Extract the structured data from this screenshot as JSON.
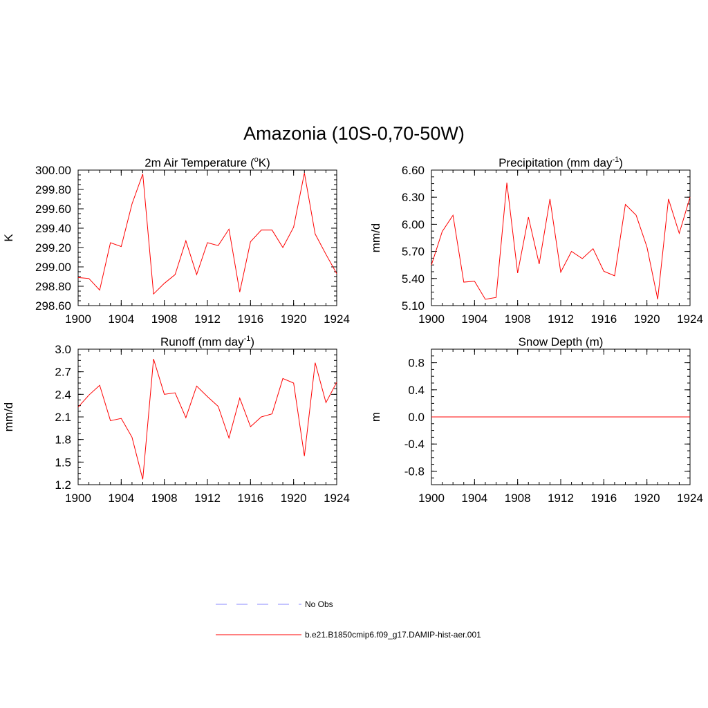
{
  "figure": {
    "title": "Amazonia (10S-0,70-50W)"
  },
  "colors": {
    "model_line": "#ff0000",
    "obs_line": "#a0a0ff",
    "axis": "#000000"
  },
  "chart_data": [
    {
      "type": "line",
      "title": "2m Air Temperature (°K)",
      "title_main": "2m Air Temperature (",
      "title_sup": "o",
      "title_end": "K)",
      "xlabel": "",
      "ylabel": "K",
      "xlim": [
        1900,
        1924
      ],
      "ylim": [
        298.6,
        300.0
      ],
      "xticks": [
        1900,
        1904,
        1908,
        1912,
        1916,
        1920,
        1924
      ],
      "yticks": [
        "298.60",
        "298.80",
        "299.00",
        "299.20",
        "299.40",
        "299.60",
        "299.80",
        "300.00"
      ],
      "grid": false,
      "series": [
        {
          "name": "b.e21.B1850cmip6.f09_g17.DAMIP-hist-aer.001",
          "x": [
            1900,
            1901,
            1902,
            1903,
            1904,
            1905,
            1906,
            1907,
            1908,
            1909,
            1910,
            1911,
            1912,
            1913,
            1914,
            1915,
            1916,
            1917,
            1918,
            1919,
            1920,
            1921,
            1922,
            1923,
            1924
          ],
          "values": [
            298.89,
            298.88,
            298.76,
            299.25,
            299.21,
            299.65,
            299.96,
            298.72,
            298.83,
            298.92,
            299.27,
            298.92,
            299.25,
            299.22,
            299.39,
            298.74,
            299.26,
            299.38,
            299.38,
            299.2,
            299.41,
            299.97,
            299.34,
            299.13,
            298.93
          ]
        }
      ]
    },
    {
      "type": "line",
      "title": "Precipitation (mm day-1)",
      "title_main": "Precipitation (mm day",
      "title_sup": "-1",
      "title_end": ")",
      "xlabel": "",
      "ylabel": "mm/d",
      "xlim": [
        1900,
        1924
      ],
      "ylim": [
        5.1,
        6.6
      ],
      "xticks": [
        1900,
        1904,
        1908,
        1912,
        1916,
        1920,
        1924
      ],
      "yticks": [
        "5.10",
        "5.40",
        "5.70",
        "6.00",
        "6.30",
        "6.60"
      ],
      "grid": false,
      "series": [
        {
          "name": "b.e21.B1850cmip6.f09_g17.DAMIP-hist-aer.001",
          "x": [
            1900,
            1901,
            1902,
            1903,
            1904,
            1905,
            1906,
            1907,
            1908,
            1909,
            1910,
            1911,
            1912,
            1913,
            1914,
            1915,
            1916,
            1917,
            1918,
            1919,
            1920,
            1921,
            1922,
            1923,
            1924
          ],
          "values": [
            5.55,
            5.92,
            6.1,
            5.36,
            5.37,
            5.17,
            5.19,
            6.46,
            5.46,
            6.08,
            5.56,
            6.28,
            5.47,
            5.7,
            5.62,
            5.73,
            5.48,
            5.43,
            6.22,
            6.1,
            5.75,
            5.17,
            6.28,
            5.9,
            6.3
          ]
        }
      ]
    },
    {
      "type": "line",
      "title": "Runoff (mm day-1)",
      "title_main": "Runoff (mm day",
      "title_sup": "-1",
      "title_end": ")",
      "xlabel": "",
      "ylabel": "mm/d",
      "xlim": [
        1900,
        1924
      ],
      "ylim": [
        1.2,
        3.0
      ],
      "xticks": [
        1900,
        1904,
        1908,
        1912,
        1916,
        1920,
        1924
      ],
      "yticks": [
        "1.2",
        "1.5",
        "1.8",
        "2.1",
        "2.4",
        "2.7",
        "3.0"
      ],
      "grid": false,
      "series": [
        {
          "name": "b.e21.B1850cmip6.f09_g17.DAMIP-hist-aer.001",
          "x": [
            1900,
            1901,
            1902,
            1903,
            1904,
            1905,
            1906,
            1907,
            1908,
            1909,
            1910,
            1911,
            1912,
            1913,
            1914,
            1915,
            1916,
            1917,
            1918,
            1919,
            1920,
            1921,
            1922,
            1923,
            1924
          ],
          "values": [
            2.23,
            2.39,
            2.52,
            2.05,
            2.08,
            1.83,
            1.27,
            2.87,
            2.4,
            2.42,
            2.09,
            2.51,
            2.37,
            2.24,
            1.82,
            2.35,
            1.97,
            2.1,
            2.14,
            2.61,
            2.55,
            1.58,
            2.82,
            2.29,
            2.56
          ]
        }
      ]
    },
    {
      "type": "line",
      "title": "Snow Depth (m)",
      "title_main": "Snow Depth (m)",
      "title_sup": "",
      "title_end": "",
      "xlabel": "",
      "ylabel": "m",
      "xlim": [
        1900,
        1924
      ],
      "ylim": [
        -1.0,
        1.0
      ],
      "xticks": [
        1900,
        1904,
        1908,
        1912,
        1916,
        1920,
        1924
      ],
      "yticks": [
        "-0.8",
        "-0.4",
        "0.0",
        "0.4",
        "0.8"
      ],
      "ytick_values": [
        -0.8,
        -0.4,
        0.0,
        0.4,
        0.8
      ],
      "grid": false,
      "series": [
        {
          "name": "b.e21.B1850cmip6.f09_g17.DAMIP-hist-aer.001",
          "x": [
            1900,
            1901,
            1902,
            1903,
            1904,
            1905,
            1906,
            1907,
            1908,
            1909,
            1910,
            1911,
            1912,
            1913,
            1914,
            1915,
            1916,
            1917,
            1918,
            1919,
            1920,
            1921,
            1922,
            1923,
            1924
          ],
          "values": [
            0,
            0,
            0,
            0,
            0,
            0,
            0,
            0,
            0,
            0,
            0,
            0,
            0,
            0,
            0,
            0,
            0,
            0,
            0,
            0,
            0,
            0,
            0,
            0,
            0
          ]
        }
      ]
    }
  ],
  "legend": {
    "entries": [
      {
        "label": "No Obs",
        "style": "dashed",
        "color": "#a0a0ff"
      },
      {
        "label": "b.e21.B1850cmip6.f09_g17.DAMIP-hist-aer.001",
        "style": "solid",
        "color": "#ff0000"
      }
    ]
  }
}
